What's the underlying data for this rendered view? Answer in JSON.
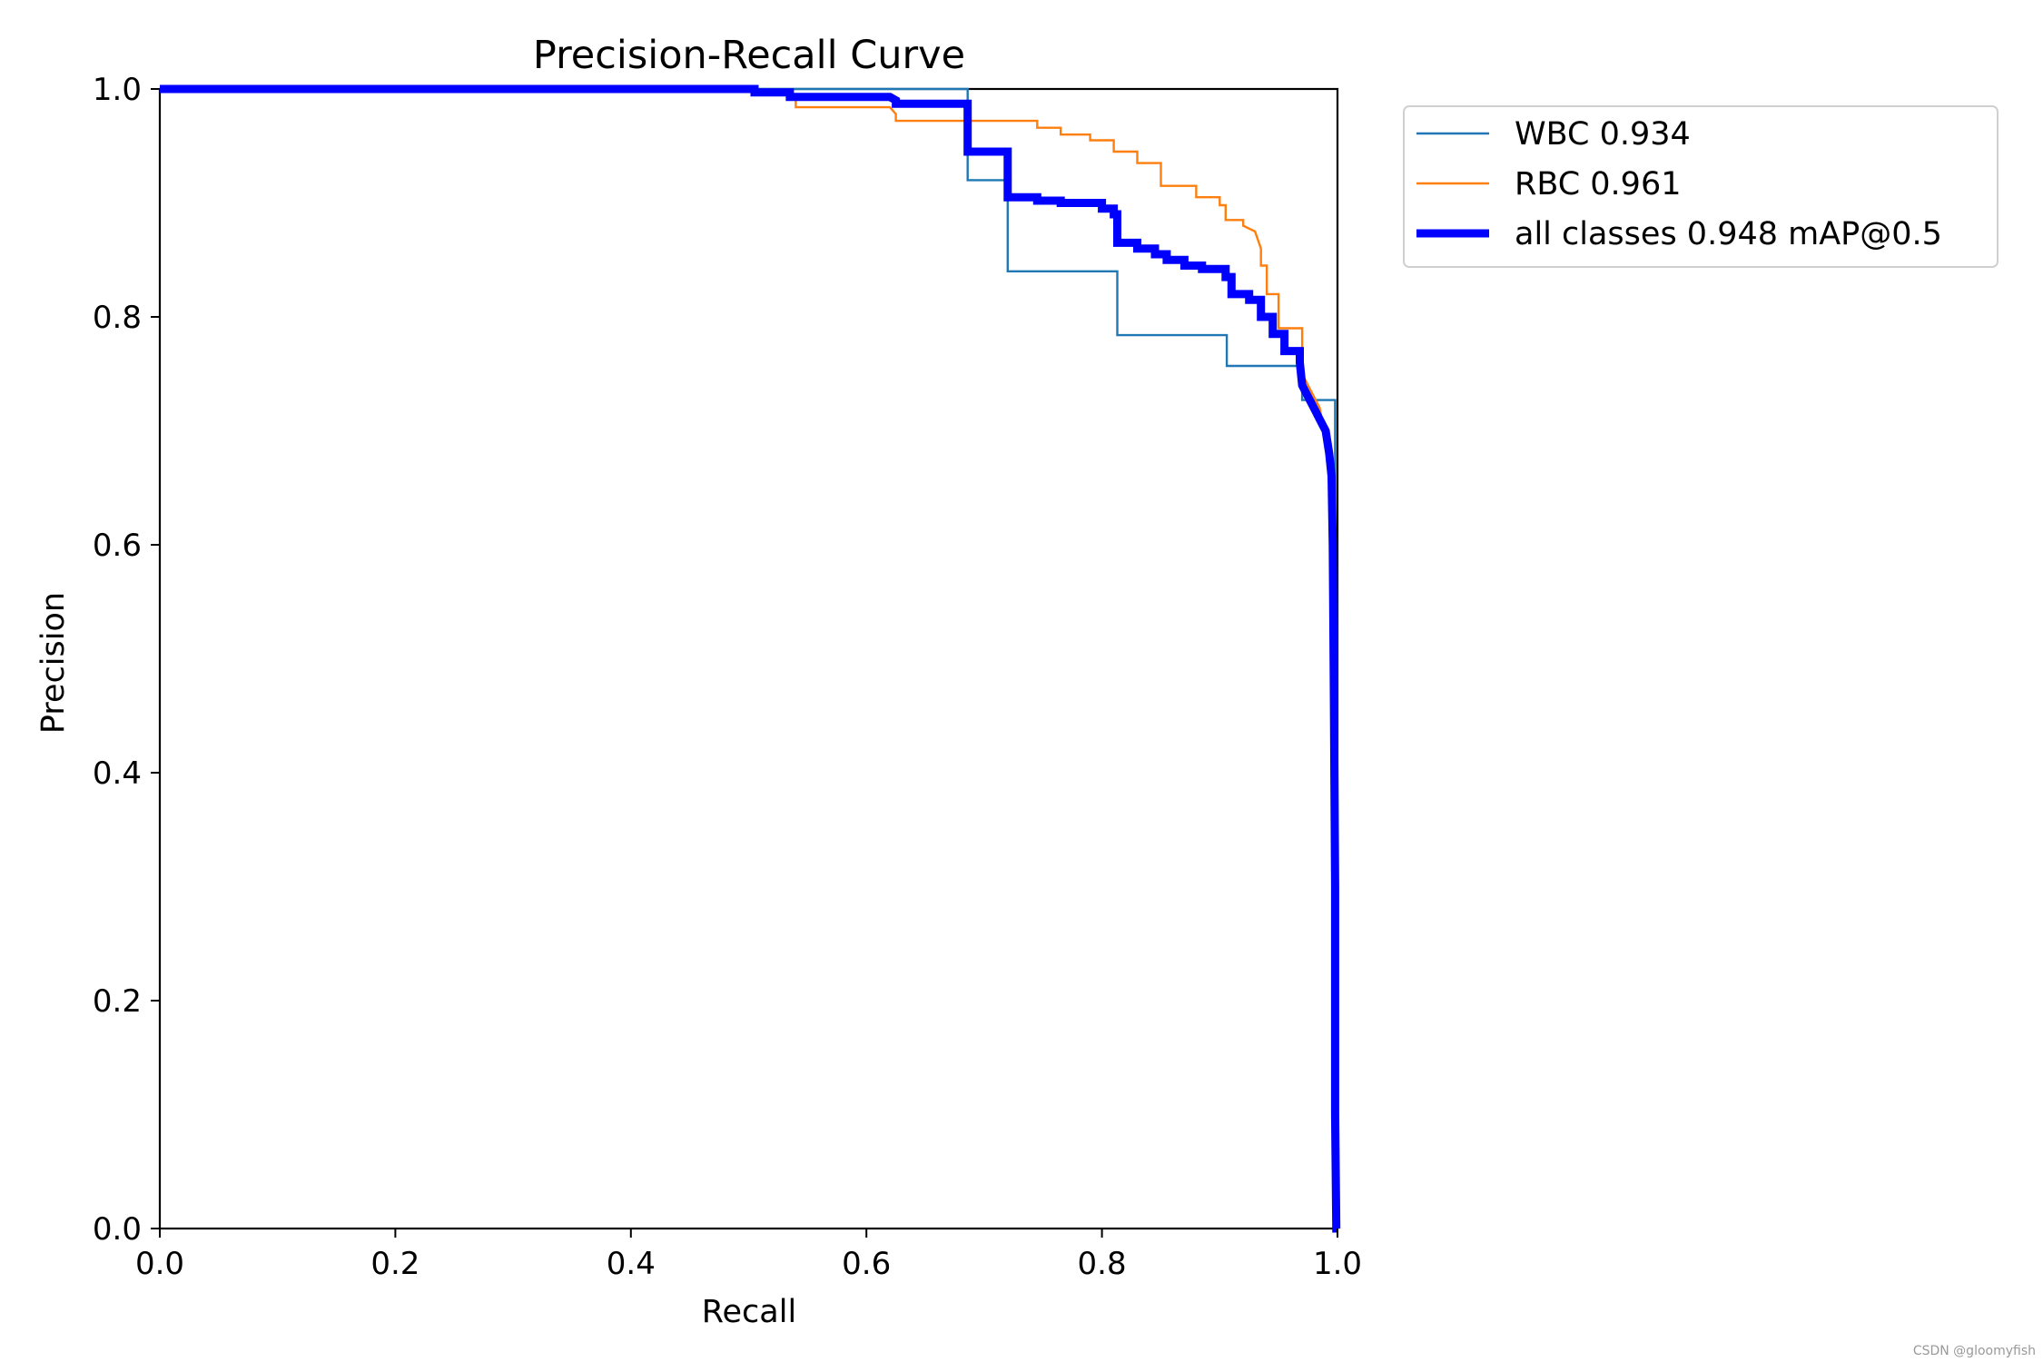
{
  "chart_data": {
    "type": "line",
    "title": "Precision-Recall Curve",
    "xlabel": "Recall",
    "ylabel": "Precision",
    "xlim": [
      0.0,
      1.0
    ],
    "ylim": [
      0.0,
      1.0
    ],
    "grid": false,
    "legend_position": "outside-top-right",
    "xticks": [
      "0.0",
      "0.2",
      "0.4",
      "0.6",
      "0.8",
      "1.0"
    ],
    "yticks": [
      "0.0",
      "0.2",
      "0.4",
      "0.6",
      "0.8",
      "1.0"
    ],
    "series": [
      {
        "name": "WBC 0.934",
        "color": "#1f77b4",
        "weight": "thin",
        "x": [
          0.0,
          0.686,
          0.686,
          0.686,
          0.72,
          0.72,
          0.72,
          0.813,
          0.813,
          0.906,
          0.906,
          0.97,
          0.97,
          0.998,
          0.998,
          1.0
        ],
        "y": [
          1.0,
          1.0,
          0.985,
          0.92,
          0.92,
          0.905,
          0.84,
          0.84,
          0.784,
          0.784,
          0.757,
          0.757,
          0.727,
          0.727,
          0.0,
          0.0
        ]
      },
      {
        "name": "RBC 0.961",
        "color": "#ff7f0e",
        "weight": "thin",
        "x": [
          0.0,
          0.5,
          0.54,
          0.54,
          0.62,
          0.625,
          0.625,
          0.745,
          0.745,
          0.765,
          0.765,
          0.79,
          0.79,
          0.81,
          0.81,
          0.83,
          0.83,
          0.85,
          0.85,
          0.88,
          0.88,
          0.9,
          0.9,
          0.905,
          0.905,
          0.92,
          0.92,
          0.93,
          0.935,
          0.935,
          0.94,
          0.94,
          0.95,
          0.95,
          0.97,
          0.97,
          0.985,
          0.99,
          0.995,
          0.995,
          1.0
        ],
        "y": [
          1.0,
          1.0,
          0.995,
          0.984,
          0.984,
          0.978,
          0.972,
          0.972,
          0.966,
          0.966,
          0.96,
          0.96,
          0.955,
          0.955,
          0.945,
          0.945,
          0.935,
          0.935,
          0.915,
          0.915,
          0.905,
          0.905,
          0.898,
          0.898,
          0.885,
          0.885,
          0.88,
          0.875,
          0.86,
          0.845,
          0.845,
          0.82,
          0.82,
          0.79,
          0.79,
          0.75,
          0.72,
          0.69,
          0.65,
          0.6,
          0.0
        ]
      },
      {
        "name": "all classes 0.948 mAP@0.5",
        "color": "#0000ff",
        "weight": "thick",
        "x": [
          0.0,
          0.505,
          0.505,
          0.535,
          0.535,
          0.62,
          0.625,
          0.625,
          0.686,
          0.686,
          0.72,
          0.72,
          0.745,
          0.745,
          0.765,
          0.765,
          0.8,
          0.8,
          0.81,
          0.81,
          0.813,
          0.813,
          0.83,
          0.83,
          0.845,
          0.845,
          0.855,
          0.855,
          0.87,
          0.87,
          0.885,
          0.885,
          0.905,
          0.905,
          0.91,
          0.91,
          0.925,
          0.925,
          0.935,
          0.935,
          0.945,
          0.945,
          0.955,
          0.955,
          0.968,
          0.968,
          0.97,
          0.975,
          0.98,
          0.985,
          0.99,
          0.993,
          0.995,
          0.996,
          0.997,
          0.998,
          0.998,
          0.999,
          1.0
        ],
        "y": [
          1.0,
          1.0,
          0.997,
          0.997,
          0.993,
          0.993,
          0.99,
          0.987,
          0.987,
          0.945,
          0.945,
          0.905,
          0.905,
          0.902,
          0.902,
          0.9,
          0.9,
          0.895,
          0.895,
          0.89,
          0.89,
          0.865,
          0.865,
          0.86,
          0.86,
          0.855,
          0.855,
          0.85,
          0.85,
          0.845,
          0.845,
          0.842,
          0.842,
          0.835,
          0.835,
          0.82,
          0.82,
          0.815,
          0.815,
          0.8,
          0.8,
          0.785,
          0.785,
          0.77,
          0.77,
          0.76,
          0.74,
          0.73,
          0.72,
          0.71,
          0.7,
          0.68,
          0.66,
          0.6,
          0.46,
          0.3,
          0.1,
          0.0,
          0.0
        ]
      }
    ]
  },
  "watermark": "CSDN @gloomyfish"
}
